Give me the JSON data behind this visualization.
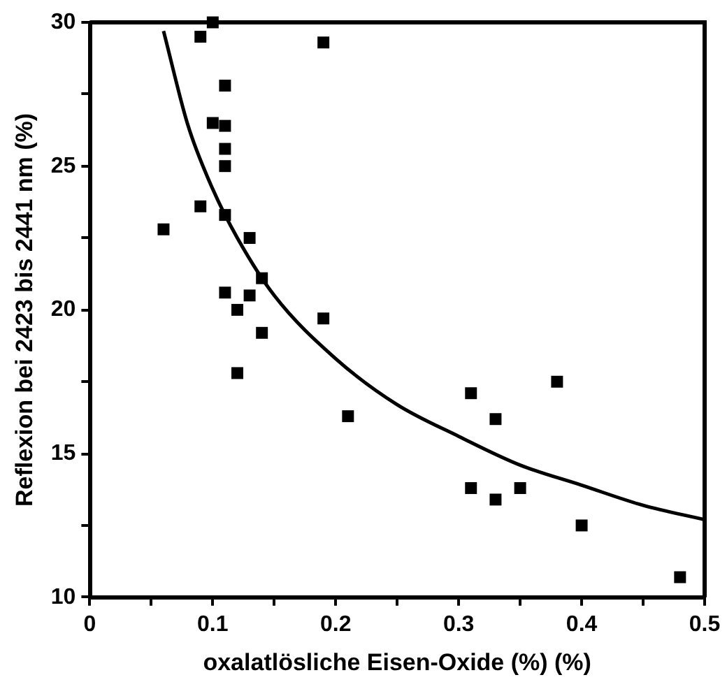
{
  "chart_data": {
    "type": "scatter",
    "xlabel": "oxalatlösliche Eisen-Oxide (%) (%)",
    "ylabel": "Reflexion bei 2423 bis 2441 nm (%)",
    "xlim": [
      0,
      0.5
    ],
    "ylim": [
      10,
      30
    ],
    "xticks": [
      0,
      {
        "value": 0.05,
        "label": null
      },
      0.1,
      {
        "value": 0.15,
        "label": null
      },
      0.2,
      {
        "value": 0.25,
        "label": null
      },
      0.3,
      {
        "value": 0.35,
        "label": null
      },
      0.4,
      {
        "value": 0.45,
        "label": null
      },
      0.5
    ],
    "yticks": [
      10,
      {
        "value": 12.5,
        "label": null
      },
      15,
      {
        "value": 17.5,
        "label": null
      },
      20,
      {
        "value": 22.5,
        "label": null
      },
      25,
      {
        "value": 27.5,
        "label": null
      },
      30
    ],
    "grid": false,
    "legend": false,
    "marker": "square",
    "series": [
      {
        "color": "#000000",
        "x": [
          0.06,
          0.09,
          0.1,
          0.09,
          0.1,
          0.11,
          0.11,
          0.11,
          0.11,
          0.11,
          0.11,
          0.12,
          0.12,
          0.13,
          0.13,
          0.14,
          0.14,
          0.19,
          0.19,
          0.21,
          0.31,
          0.33,
          0.38,
          0.31,
          0.33,
          0.35,
          0.4,
          0.48
        ],
        "values": [
          22.8,
          29.5,
          30.0,
          23.6,
          26.5,
          26.4,
          27.8,
          25.6,
          25.0,
          23.3,
          20.6,
          20.0,
          17.8,
          22.5,
          20.5,
          21.1,
          19.2,
          29.3,
          19.7,
          16.3,
          17.1,
          16.2,
          17.5,
          13.8,
          13.4,
          13.8,
          12.5,
          10.7
        ]
      },
      {
        "type": "line",
        "color": "#000000",
        "marker": "none",
        "line_style": "solid",
        "x": [
          0.06,
          0.08,
          0.1,
          0.12,
          0.15,
          0.2,
          0.25,
          0.3,
          0.35,
          0.4,
          0.45,
          0.5
        ],
        "values": [
          29.7,
          26.4,
          24.2,
          22.5,
          20.5,
          18.3,
          16.7,
          15.6,
          14.6,
          13.9,
          13.2,
          12.7
        ]
      }
    ]
  }
}
